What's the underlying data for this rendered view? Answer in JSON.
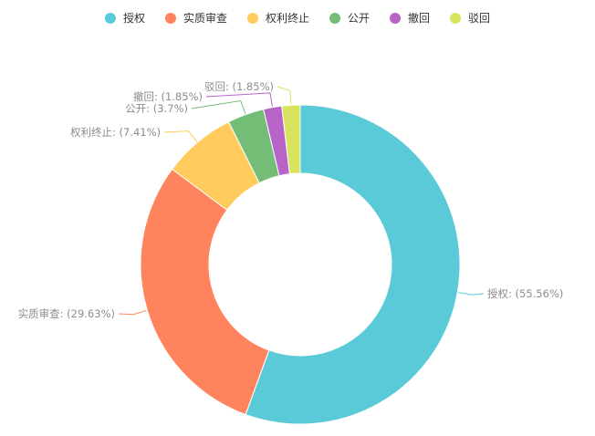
{
  "chart_data": {
    "type": "pie",
    "variant": "donut",
    "title": "",
    "legend_position": "top-center",
    "label_format": "{name}: ({percent})",
    "slices": [
      {
        "name": "授权",
        "value": 55.56,
        "percent_label": "55.56%",
        "color": "#5bcad8"
      },
      {
        "name": "实质审查",
        "value": 29.63,
        "percent_label": "29.63%",
        "color": "#ff845e"
      },
      {
        "name": "权利终止",
        "value": 7.41,
        "percent_label": "7.41%",
        "color": "#ffcb5d"
      },
      {
        "name": "公开",
        "value": 3.7,
        "percent_label": "3.7%",
        "color": "#74bd76"
      },
      {
        "name": "撤回",
        "value": 1.85,
        "percent_label": "1.85%",
        "color": "#b763c7"
      },
      {
        "name": "驳回",
        "value": 1.85,
        "percent_label": "1.85%",
        "color": "#d8e45d"
      }
    ]
  }
}
